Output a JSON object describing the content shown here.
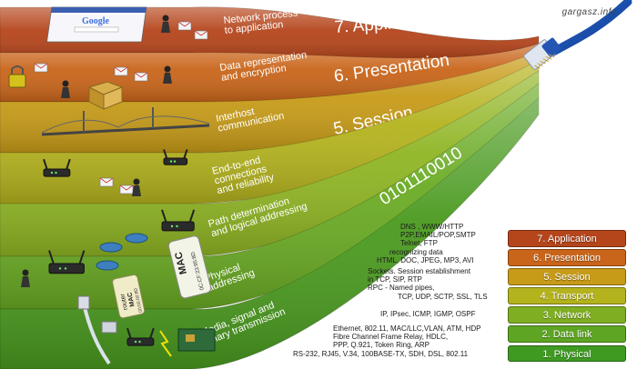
{
  "site": "gargasz.info",
  "layers": [
    {
      "name": "7. Application",
      "desc": [
        "Network process",
        "to application"
      ],
      "color": "#b5451b"
    },
    {
      "name": "6. Presentation",
      "desc": [
        "Data representation",
        "and encryption"
      ],
      "color": "#c9651a"
    },
    {
      "name": "5. Session",
      "desc": [
        "Interhost",
        "communication"
      ],
      "color": "#c79b18"
    },
    {
      "name": "4. Transport",
      "desc": [
        "End-to-end",
        "connections",
        "and reliability"
      ],
      "color": "#b4b31e"
    },
    {
      "name": "3. Network",
      "desc": [
        "Path determination",
        "and logical addressing"
      ],
      "color": "#8fb523"
    },
    {
      "name": "2. Data link",
      "desc": [
        "Physical",
        "addressing"
      ],
      "color": "#6aab24"
    },
    {
      "name": "1. Physical",
      "desc": [
        "Media, signal and",
        "binary transmission"
      ],
      "color": "#4a9a1f"
    }
  ],
  "bits": "0101110010",
  "legend": [
    {
      "label": "7. Application",
      "color": "#b5451b"
    },
    {
      "label": "6. Presentation",
      "color": "#c9651a"
    },
    {
      "label": "5. Session",
      "color": "#c79b18"
    },
    {
      "label": "4. Transport",
      "color": "#b4b31e"
    },
    {
      "label": "3. Network",
      "color": "#7fae22"
    },
    {
      "label": "2. Data link",
      "color": "#5ea523"
    },
    {
      "label": "1. Physical",
      "color": "#3f9a22"
    }
  ],
  "protocols": {
    "application": [
      "DNS , WWW/HTTP",
      "P2P,EMAIL/POP,SMTP",
      "Telnet, FTP"
    ],
    "presentation": [
      "recognizing data",
      "HTML, DOC, JPEG, MP3, AVI"
    ],
    "session": [
      "Sockets. Session establishment",
      "in TCP, SIP, RTP",
      "RPC - Named pipes,"
    ],
    "transport": [
      "TCP, UDP, SCTP, SSL, TLS"
    ],
    "network": [
      "IP, IPsec, ICMP, IGMP, OSPF"
    ],
    "datalink": [
      "Ethernet, 802.11, MAC/LLC,VLAN, ATM, HDP",
      "Fibre Channel Frame Relay, HDLC,",
      "PPP, Q.921, Token Ring, ARP"
    ],
    "physical": [
      "RS-232, RJ45, V.34, 100BASE-TX, SDH, DSL, 802.11"
    ]
  },
  "tags": {
    "mac": "MAC",
    "mac_addr": "0C:CF:23:95:8D",
    "router": "router",
    "router_mac": "MAC",
    "router_addr": "00:00:00:8D"
  },
  "search_logo": "Google"
}
